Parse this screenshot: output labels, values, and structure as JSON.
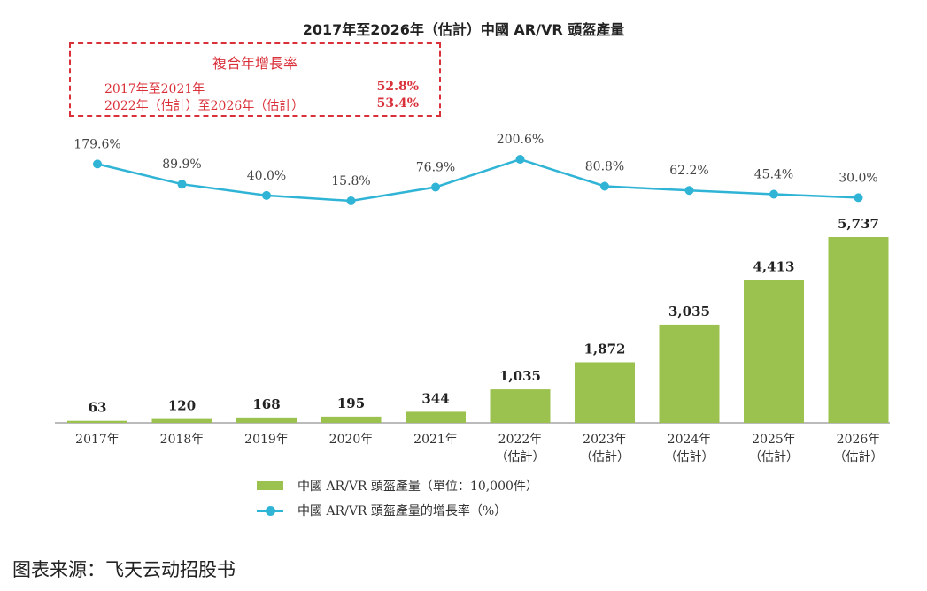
{
  "chart_data": {
    "type": "bar+line",
    "title": "2017年至2026年（估計）中國 AR/VR 頭盔產量",
    "categories": [
      "2017年",
      "2018年",
      "2019年",
      "2020年",
      "2021年",
      "2022年\n（估計）",
      "2023年\n（估計）",
      "2024年\n（估計）",
      "2025年\n（估計）",
      "2026年\n（估計）"
    ],
    "bar_labels": [
      "63",
      "120",
      "168",
      "195",
      "344",
      "1,035",
      "1,872",
      "3,035",
      "4,413",
      "5,737"
    ],
    "line_labels": [
      "179.6%",
      "89.9%",
      "40.0%",
      "15.8%",
      "76.9%",
      "200.6%",
      "80.8%",
      "62.2%",
      "45.4%",
      "30.0%"
    ],
    "series": [
      {
        "name": "中國 AR/VR 頭盔產量（單位：10,000件）",
        "type": "bar",
        "color": "#9bc14e",
        "values": [
          63,
          120,
          168,
          195,
          344,
          1035,
          1872,
          3035,
          4413,
          5737
        ]
      },
      {
        "name": "中國 AR/VR 頭盔產量的增長率（%）",
        "type": "line",
        "color": "#2fb4d6",
        "values": [
          179.6,
          89.9,
          40.0,
          15.8,
          76.9,
          200.6,
          80.8,
          62.2,
          45.4,
          30.0
        ]
      }
    ],
    "legend": "bottom",
    "grid": false
  },
  "cagr_box": {
    "heading": "複合年增長率",
    "rows": [
      {
        "label": "2017年至2021年",
        "value": "52.8%"
      },
      {
        "label": "2022年（估計）至2026年（估計）",
        "value": "53.4%"
      }
    ],
    "color": "#d9303a"
  },
  "source": "图表来源：飞天云动招股书"
}
